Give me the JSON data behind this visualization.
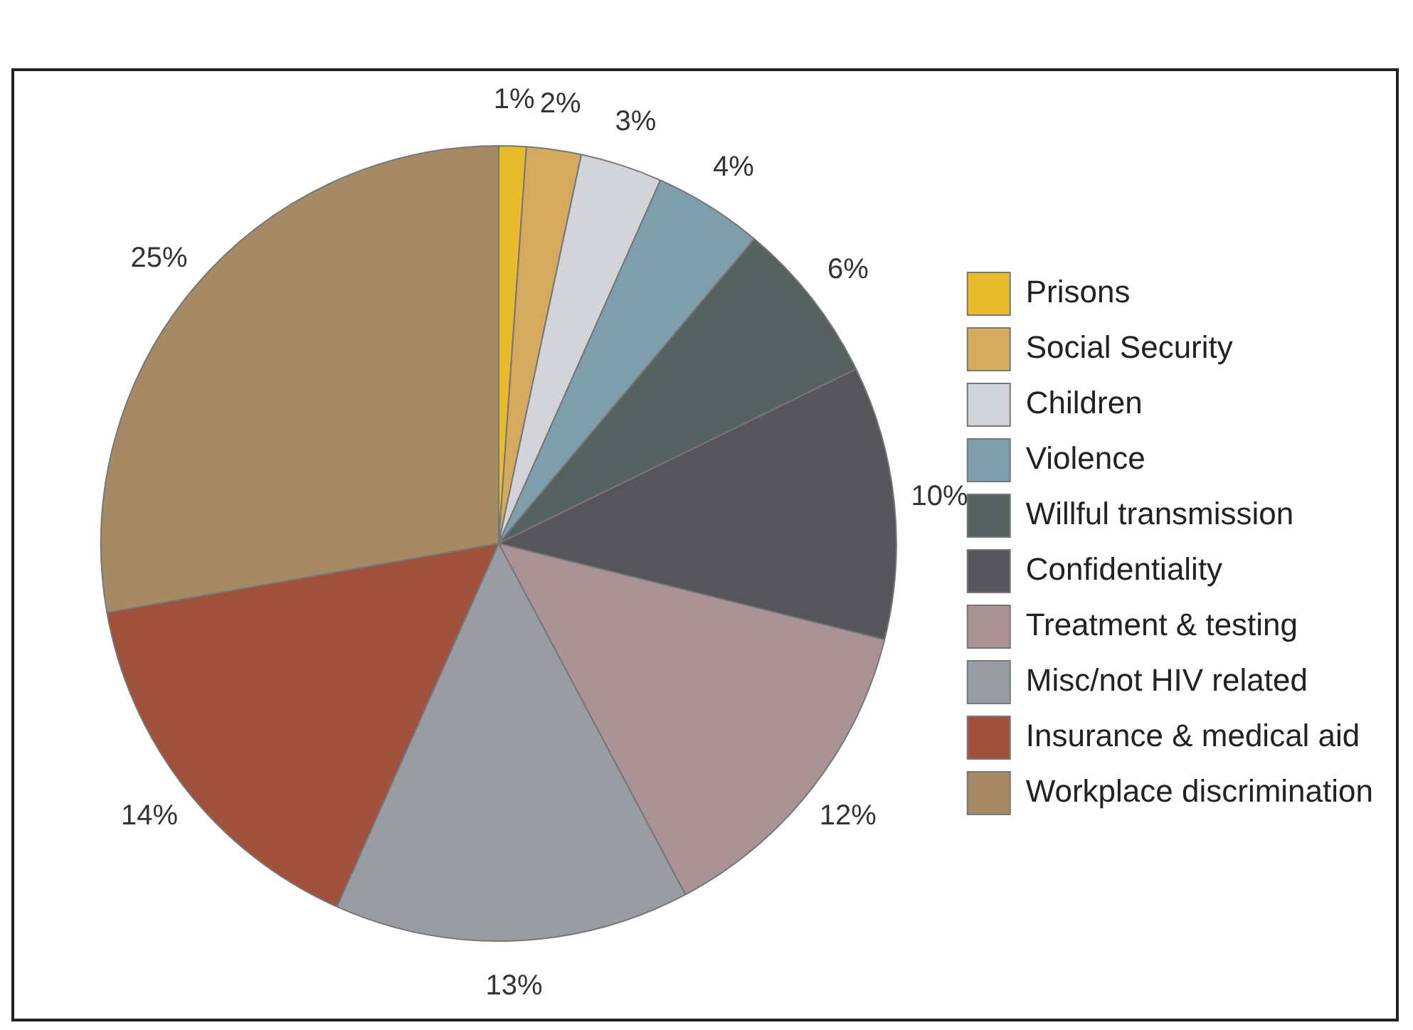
{
  "chart_data": {
    "type": "pie",
    "categories": [
      "Prisons",
      "Social Security",
      "Children",
      "Violence",
      "Willful transmission",
      "Confidentiality",
      "Treatment & testing",
      "Misc/not HIV related",
      "Insurance & medical aid",
      "Workplace discrimination"
    ],
    "values": [
      1,
      2,
      3,
      4,
      6,
      10,
      12,
      13,
      14,
      25
    ],
    "colors": [
      "#e8bb2a",
      "#d6aa5e",
      "#d3d3da",
      "#7f9eac",
      "#56625f",
      "#56555a",
      "#a99394",
      "#999ca2",
      "#a0513b",
      "#a68a66"
    ],
    "value_labels": [
      "1%",
      "2%",
      "3%",
      "4%",
      "6%",
      "10%",
      "12%",
      "13%",
      "14%",
      "25%"
    ],
    "legend": "right"
  }
}
